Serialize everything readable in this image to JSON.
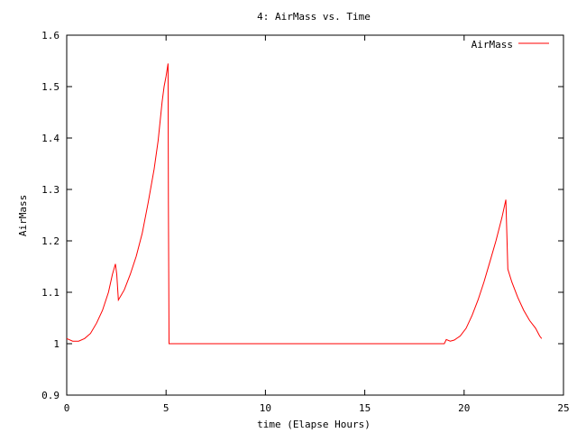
{
  "chart_data": {
    "type": "line",
    "title": "4: AirMass vs. Time",
    "xlabel": "time (Elapse Hours)",
    "ylabel": "AirMass",
    "xlim": [
      0,
      25
    ],
    "ylim": [
      0.9,
      1.6
    ],
    "xticks": [
      0,
      5,
      10,
      15,
      20,
      25
    ],
    "yticks": [
      0.9,
      1.0,
      1.1,
      1.2,
      1.3,
      1.4,
      1.5,
      1.6
    ],
    "xtick_labels": [
      "0",
      "5",
      "10",
      "15",
      "20",
      "25"
    ],
    "ytick_labels": [
      "0.9",
      "1",
      "1.1",
      "1.2",
      "1.3",
      "1.4",
      "1.5",
      "1.6"
    ],
    "grid": false,
    "legend_position": "top-right",
    "series": [
      {
        "name": "AirMass",
        "color": "#ff0000",
        "x": [
          0.0,
          0.3,
          0.6,
          0.9,
          1.2,
          1.5,
          1.8,
          2.1,
          2.3,
          2.45,
          2.52,
          2.6,
          2.9,
          3.2,
          3.5,
          3.8,
          4.1,
          4.4,
          4.6,
          4.8,
          4.9,
          5.0,
          5.1,
          5.12,
          5.15,
          5.2,
          6.0,
          10.0,
          15.0,
          19.0,
          19.1,
          19.3,
          19.5,
          19.8,
          20.1,
          20.4,
          20.7,
          21.0,
          21.3,
          21.6,
          21.9,
          22.1,
          22.2,
          22.4,
          22.7,
          23.0,
          23.3,
          23.6,
          23.8,
          23.9
        ],
        "y": [
          1.01,
          1.005,
          1.005,
          1.01,
          1.02,
          1.04,
          1.065,
          1.1,
          1.135,
          1.155,
          1.135,
          1.085,
          1.105,
          1.135,
          1.17,
          1.215,
          1.275,
          1.34,
          1.395,
          1.47,
          1.5,
          1.52,
          1.545,
          1.27,
          1.0,
          1.0,
          1.0,
          1.0,
          1.0,
          1.0,
          1.008,
          1.005,
          1.007,
          1.015,
          1.03,
          1.055,
          1.085,
          1.12,
          1.16,
          1.2,
          1.245,
          1.28,
          1.145,
          1.12,
          1.09,
          1.065,
          1.045,
          1.03,
          1.015,
          1.01
        ]
      }
    ]
  }
}
